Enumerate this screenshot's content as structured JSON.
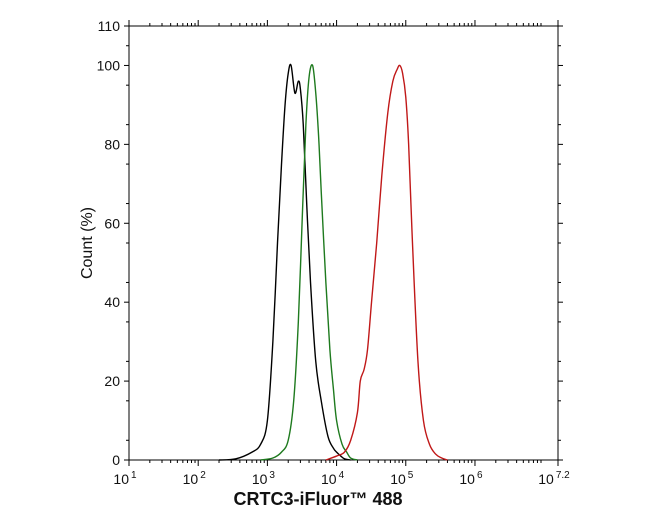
{
  "chart_data": {
    "type": "line",
    "title": "",
    "xlabel": "CRTC3-iFluor™ 488",
    "ylabel": "Count  (%)",
    "x_scale": "log10",
    "xlim": [
      10,
      15848932
    ],
    "ylim": [
      0,
      110
    ],
    "x_ticks": [
      {
        "base": "10",
        "exp": "1",
        "value": 10
      },
      {
        "base": "10",
        "exp": "2",
        "value": 100
      },
      {
        "base": "10",
        "exp": "3",
        "value": 1000
      },
      {
        "base": "10",
        "exp": "4",
        "value": 10000
      },
      {
        "base": "10",
        "exp": "5",
        "value": 100000
      },
      {
        "base": "10",
        "exp": "6",
        "value": 1000000
      },
      {
        "base": "10",
        "exp": "7.2",
        "value": 15848932
      }
    ],
    "y_ticks": [
      "0",
      "20",
      "40",
      "60",
      "80",
      "100",
      "110"
    ],
    "y_tick_values": [
      0,
      20,
      40,
      60,
      80,
      100,
      110
    ],
    "grid": false,
    "legend": "none",
    "series": [
      {
        "color": "#000000",
        "x": [
          200,
          350,
          600,
          800,
          1000,
          1200,
          1400,
          1600,
          1800,
          2000,
          2200,
          2500,
          2800,
          3000,
          3300,
          3700,
          4200,
          5000,
          6000,
          7500,
          9000,
          10000,
          11500,
          13000,
          16000
        ],
        "y": [
          0,
          0.3,
          2,
          4,
          10,
          30,
          55,
          75,
          90,
          98,
          100,
          93,
          96,
          94,
          85,
          65,
          45,
          25,
          15,
          6,
          3,
          2,
          1,
          0.3,
          0
        ]
      },
      {
        "color": "#1e7a1e",
        "x": [
          800,
          1200,
          1600,
          2000,
          2400,
          2800,
          3200,
          3600,
          4000,
          4500,
          5000,
          5500,
          6000,
          7000,
          8000,
          9000,
          10000,
          12000,
          14000,
          16000,
          20000
        ],
        "y": [
          0,
          0.5,
          2,
          5,
          15,
          35,
          62,
          85,
          97,
          100,
          93,
          82,
          68,
          45,
          28,
          18,
          10,
          4,
          2,
          0.5,
          0
        ]
      },
      {
        "color": "#c01818",
        "x": [
          7000,
          10000,
          13000,
          16000,
          20000,
          22000,
          25000,
          28000,
          32000,
          38000,
          45000,
          55000,
          65000,
          75000,
          82000,
          90000,
          100000,
          110000,
          125000,
          150000,
          180000,
          220000,
          270000,
          330000,
          400000
        ],
        "y": [
          0,
          1,
          2,
          5,
          12,
          20,
          23,
          28,
          40,
          55,
          72,
          88,
          96,
          99,
          100,
          98,
          92,
          80,
          55,
          25,
          10,
          4,
          1.5,
          0.5,
          0
        ]
      }
    ]
  }
}
